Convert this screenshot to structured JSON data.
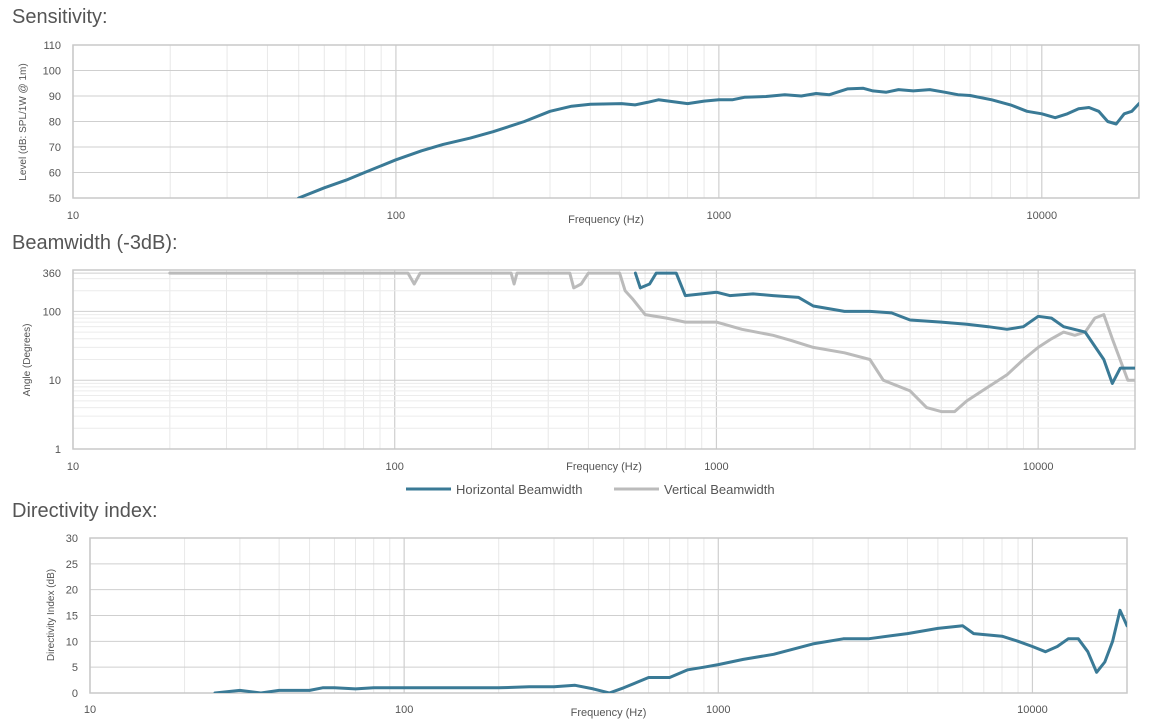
{
  "chart_data": [
    {
      "type": "line",
      "title": "Sensitivity:",
      "xlabel": "Frequency (Hz)",
      "ylabel": "Level (dB: SPL/1W @ 1m)",
      "xscale": "log",
      "xlim": [
        10,
        20000
      ],
      "ylim": [
        50,
        110
      ],
      "x_ticks": [
        10,
        100,
        1000,
        10000
      ],
      "y_ticks": [
        50,
        60,
        70,
        80,
        90,
        100,
        110
      ],
      "grid": true,
      "legend": "none",
      "series": [
        {
          "color": "#3a7a96",
          "points": [
            [
              50,
              50
            ],
            [
              60,
              54
            ],
            [
              70,
              57
            ],
            [
              80,
              60
            ],
            [
              100,
              65
            ],
            [
              120,
              68.5
            ],
            [
              140,
              71
            ],
            [
              170,
              73.5
            ],
            [
              200,
              76
            ],
            [
              250,
              80
            ],
            [
              300,
              84
            ],
            [
              350,
              86
            ],
            [
              400,
              86.8
            ],
            [
              500,
              87
            ],
            [
              550,
              86.5
            ],
            [
              600,
              87.5
            ],
            [
              650,
              88.5
            ],
            [
              700,
              88
            ],
            [
              800,
              87
            ],
            [
              900,
              88
            ],
            [
              1000,
              88.5
            ],
            [
              1100,
              88.5
            ],
            [
              1200,
              89.5
            ],
            [
              1400,
              89.8
            ],
            [
              1600,
              90.5
            ],
            [
              1800,
              90
            ],
            [
              2000,
              91
            ],
            [
              2200,
              90.5
            ],
            [
              2500,
              92.8
            ],
            [
              2800,
              93
            ],
            [
              3000,
              92
            ],
            [
              3300,
              91.5
            ],
            [
              3600,
              92.5
            ],
            [
              4000,
              92
            ],
            [
              4500,
              92.5
            ],
            [
              5000,
              91.5
            ],
            [
              5500,
              90.5
            ],
            [
              6000,
              90.2
            ],
            [
              7000,
              88.5
            ],
            [
              8000,
              86.5
            ],
            [
              9000,
              84
            ],
            [
              10000,
              83
            ],
            [
              11000,
              81.5
            ],
            [
              12000,
              83
            ],
            [
              13000,
              85
            ],
            [
              14000,
              85.5
            ],
            [
              15000,
              84
            ],
            [
              16000,
              80
            ],
            [
              17000,
              79
            ],
            [
              18000,
              83
            ],
            [
              19000,
              84
            ],
            [
              20000,
              87
            ]
          ]
        }
      ]
    },
    {
      "type": "line",
      "title": "Beamwidth (-3dB):",
      "xlabel": "Frequency (Hz)",
      "ylabel": "Angle (Degrees)",
      "xscale": "log",
      "yscale": "log",
      "xlim": [
        10,
        20000
      ],
      "ylim": [
        1,
        400
      ],
      "x_ticks": [
        10,
        100,
        1000,
        10000
      ],
      "y_ticks": [
        1,
        10,
        100,
        360
      ],
      "grid": true,
      "legend": "bottom-center",
      "series": [
        {
          "name": "Horizontal Beamwidth",
          "color": "#3a7a96",
          "points": [
            [
              560,
              360
            ],
            [
              580,
              220
            ],
            [
              620,
              250
            ],
            [
              650,
              360
            ],
            [
              750,
              360
            ],
            [
              800,
              170
            ],
            [
              900,
              180
            ],
            [
              1000,
              190
            ],
            [
              1100,
              170
            ],
            [
              1300,
              180
            ],
            [
              1500,
              170
            ],
            [
              1800,
              160
            ],
            [
              2000,
              120
            ],
            [
              2500,
              100
            ],
            [
              3000,
              100
            ],
            [
              3500,
              95
            ],
            [
              4000,
              75
            ],
            [
              5000,
              70
            ],
            [
              6000,
              65
            ],
            [
              7000,
              60
            ],
            [
              8000,
              55
            ],
            [
              9000,
              60
            ],
            [
              10000,
              85
            ],
            [
              11000,
              80
            ],
            [
              12000,
              60
            ],
            [
              14000,
              50
            ],
            [
              16000,
              20
            ],
            [
              17000,
              9
            ],
            [
              18000,
              15
            ],
            [
              20000,
              15
            ]
          ]
        },
        {
          "name": "Vertical Beamwidth",
          "color": "#bbbbbb",
          "points": [
            [
              20,
              360
            ],
            [
              110,
              360
            ],
            [
              115,
              250
            ],
            [
              120,
              360
            ],
            [
              230,
              360
            ],
            [
              235,
              250
            ],
            [
              240,
              360
            ],
            [
              350,
              360
            ],
            [
              360,
              220
            ],
            [
              380,
              250
            ],
            [
              400,
              360
            ],
            [
              500,
              360
            ],
            [
              520,
              200
            ],
            [
              550,
              150
            ],
            [
              600,
              90
            ],
            [
              700,
              80
            ],
            [
              800,
              70
            ],
            [
              1000,
              70
            ],
            [
              1200,
              55
            ],
            [
              1500,
              45
            ],
            [
              1700,
              38
            ],
            [
              2000,
              30
            ],
            [
              2500,
              25
            ],
            [
              3000,
              20
            ],
            [
              3300,
              10
            ],
            [
              4000,
              7
            ],
            [
              4500,
              4
            ],
            [
              5000,
              3.5
            ],
            [
              5500,
              3.5
            ],
            [
              6000,
              5
            ],
            [
              7000,
              8
            ],
            [
              8000,
              12
            ],
            [
              9000,
              20
            ],
            [
              10000,
              30
            ],
            [
              11000,
              40
            ],
            [
              12000,
              50
            ],
            [
              13000,
              45
            ],
            [
              14000,
              50
            ],
            [
              15000,
              80
            ],
            [
              16000,
              90
            ],
            [
              17000,
              40
            ],
            [
              19000,
              10
            ],
            [
              20000,
              10
            ]
          ]
        }
      ]
    },
    {
      "type": "line",
      "title": "Directivity index:",
      "xlabel": "Frequency (Hz)",
      "ylabel": "Directivity Index (dB)",
      "xscale": "log",
      "xlim": [
        10,
        20000
      ],
      "ylim": [
        0,
        30
      ],
      "x_ticks": [
        10,
        100,
        1000,
        10000
      ],
      "y_ticks": [
        0,
        5,
        10,
        15,
        20,
        25,
        30
      ],
      "grid": true,
      "legend": "none",
      "series": [
        {
          "color": "#3a7a96",
          "points": [
            [
              25,
              0
            ],
            [
              30,
              0.5
            ],
            [
              35,
              0
            ],
            [
              40,
              0.5
            ],
            [
              50,
              0.5
            ],
            [
              55,
              1
            ],
            [
              60,
              1
            ],
            [
              70,
              0.8
            ],
            [
              80,
              1
            ],
            [
              100,
              1
            ],
            [
              150,
              1
            ],
            [
              200,
              1
            ],
            [
              250,
              1.2
            ],
            [
              300,
              1.2
            ],
            [
              350,
              1.5
            ],
            [
              400,
              0.8
            ],
            [
              450,
              0
            ],
            [
              500,
              1
            ],
            [
              600,
              3
            ],
            [
              700,
              3
            ],
            [
              800,
              4.5
            ],
            [
              900,
              5
            ],
            [
              1000,
              5.5
            ],
            [
              1200,
              6.5
            ],
            [
              1500,
              7.5
            ],
            [
              2000,
              9.5
            ],
            [
              2500,
              10.5
            ],
            [
              3000,
              10.5
            ],
            [
              4000,
              11.5
            ],
            [
              5000,
              12.5
            ],
            [
              6000,
              13
            ],
            [
              6500,
              11.5
            ],
            [
              8000,
              11
            ],
            [
              9000,
              10
            ],
            [
              10000,
              9
            ],
            [
              11000,
              8
            ],
            [
              12000,
              9
            ],
            [
              13000,
              10.5
            ],
            [
              14000,
              10.5
            ],
            [
              15000,
              8
            ],
            [
              16000,
              4
            ],
            [
              17000,
              6
            ],
            [
              18000,
              10
            ],
            [
              19000,
              16
            ],
            [
              20000,
              13
            ]
          ]
        }
      ]
    }
  ]
}
